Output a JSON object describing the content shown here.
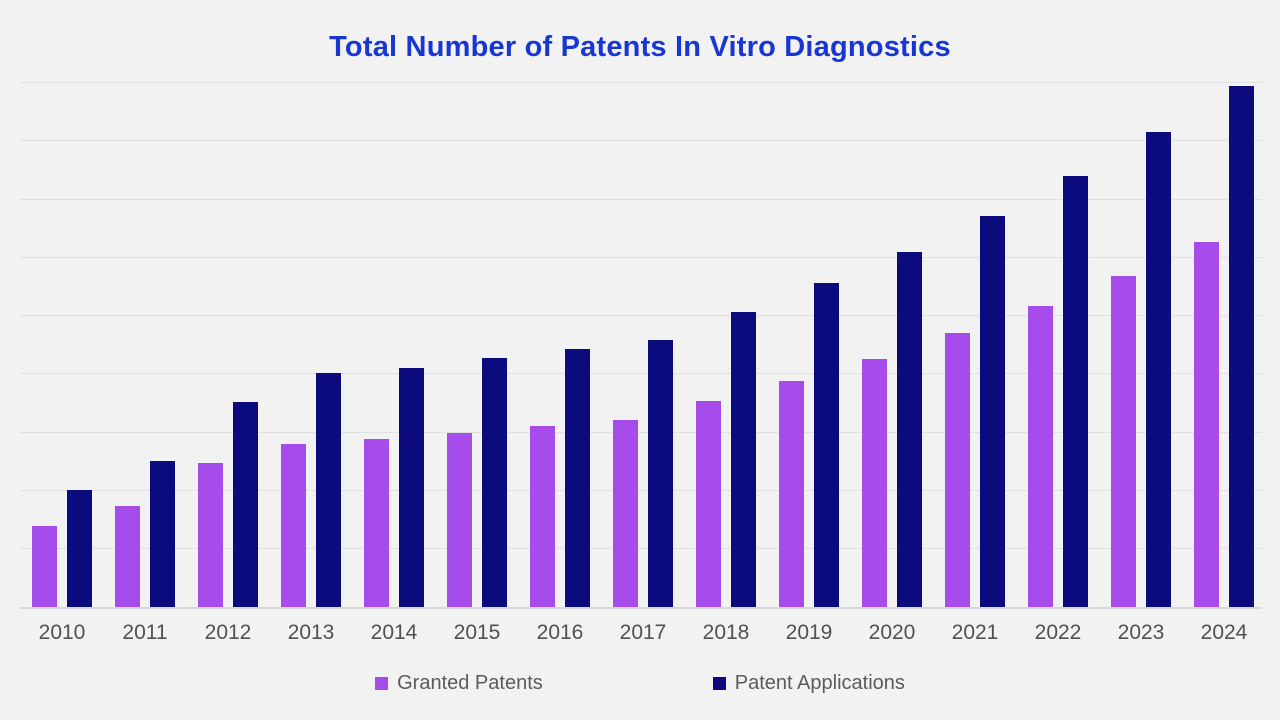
{
  "page": {
    "background_color": "#f2f2f3",
    "gridline_color": "#e0e0e1",
    "baseline_color": "#d9d9da",
    "axis_label_color": "#515154",
    "legend_text_color": "#5b5b5e"
  },
  "title": {
    "text": "Total Number of Patents In Vitro Diagnostics",
    "color": "#1836d2"
  },
  "legend": {
    "items": [
      {
        "label": "Granted Patents",
        "color": "#a64ceb"
      },
      {
        "label": "Patent Applications",
        "color": "#0b0b7e"
      }
    ]
  },
  "chart_data": {
    "type": "bar",
    "title": "Total Number of Patents In Vitro Diagnostics",
    "categories": [
      "2010",
      "2011",
      "2012",
      "2013",
      "2014",
      "2015",
      "2016",
      "2017",
      "2018",
      "2019",
      "2020",
      "2021",
      "2022",
      "2023",
      "2024"
    ],
    "series": [
      {
        "name": "Granted Patents",
        "color": "#a64ceb",
        "values": [
          15.5,
          19.3,
          27.4,
          31.1,
          32.0,
          33.1,
          34.4,
          35.7,
          39.3,
          43.0,
          47.3,
          52.2,
          57.4,
          63.1,
          69.6
        ]
      },
      {
        "name": "Patent Applications",
        "color": "#0b0b7e",
        "values": [
          22.2,
          27.8,
          39.0,
          44.6,
          45.5,
          47.4,
          49.2,
          50.9,
          56.1,
          61.8,
          67.7,
          74.5,
          82.0,
          90.4,
          99.3
        ]
      }
    ],
    "xlabel": "",
    "ylabel": "",
    "y_axis": {
      "labels_visible": false,
      "note": "No numeric y-axis labels shown in chart; values are relative heights in percent of plot area height",
      "ylim": [
        0,
        100
      ]
    },
    "grid": {
      "horizontal_gridlines": 10,
      "visible": true
    },
    "legend_position": "bottom"
  }
}
